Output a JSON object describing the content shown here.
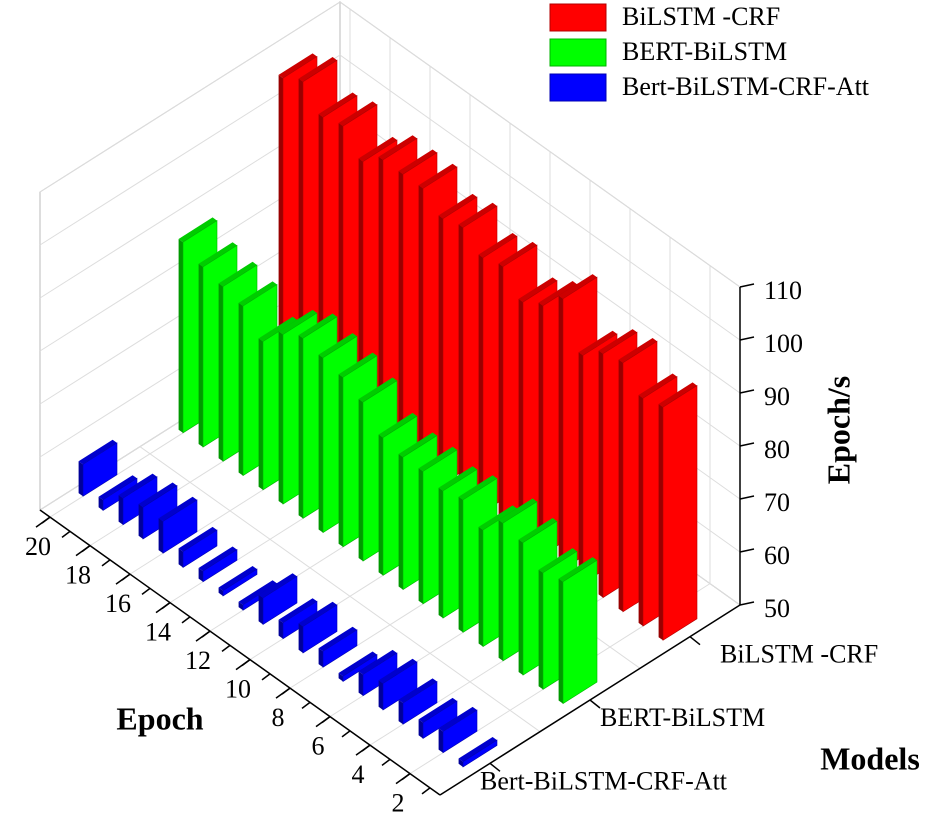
{
  "chart_data": {
    "type": "bar3d",
    "x_label": "Epoch",
    "y_label": "Epoch/s",
    "z_label": "Models",
    "x": [
      1,
      2,
      3,
      4,
      5,
      6,
      7,
      8,
      9,
      10,
      11,
      12,
      13,
      14,
      15,
      16,
      17,
      18,
      19,
      20
    ],
    "xlim": [
      0.5,
      20.5
    ],
    "xticks": [
      2,
      4,
      6,
      8,
      10,
      12,
      14,
      16,
      18,
      20
    ],
    "ylim": [
      50,
      110
    ],
    "yticks": [
      50,
      60,
      70,
      80,
      90,
      100,
      110
    ],
    "categories": [
      "Bert-BiLSTM-CRF-Att",
      "BERT-BiLSTM",
      "BiLSTM -CRF"
    ],
    "series": [
      {
        "name": "BiLSTM -CRF",
        "color": "#ff0000",
        "values": [
          94,
          93,
          97,
          96,
          93,
          101,
          97,
          95,
          99,
          98,
          101,
          100,
          103,
          103,
          103,
          100,
          104,
          103,
          107,
          105
        ]
      },
      {
        "name": "BERT-BiLSTM",
        "color": "#00ff00",
        "values": [
          73,
          72,
          75,
          76,
          72,
          75,
          74,
          75,
          75,
          76,
          80,
          82,
          83,
          84,
          82,
          78,
          82,
          83,
          84,
          86
        ]
      },
      {
        "name": "Bert-BiLSTM-CRF-Att",
        "color": "#0000ff",
        "values": [
          51,
          54,
          53,
          54,
          55,
          54,
          51,
          53,
          55,
          53,
          55,
          51,
          51,
          52,
          53,
          56,
          56,
          55,
          52,
          56
        ]
      }
    ],
    "legend": "top-right"
  }
}
